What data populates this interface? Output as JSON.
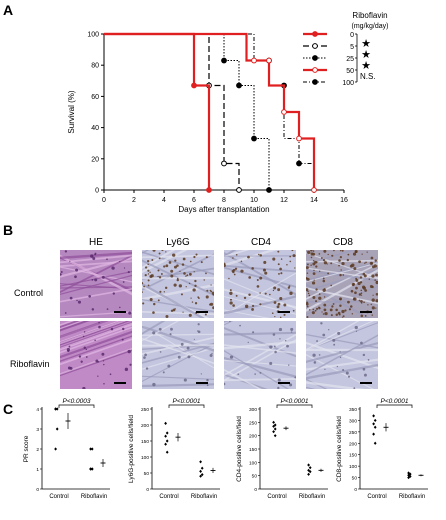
{
  "panels": {
    "a": "A",
    "b": "B",
    "c": "C"
  },
  "legend": {
    "title_line1": "Riboflavin",
    "title_line2": "(mg/kg/day)",
    "items": [
      {
        "dose": "0",
        "mark": "★"
      },
      {
        "dose": "5",
        "mark": "★"
      },
      {
        "dose": "25",
        "mark": "★"
      },
      {
        "dose": "50",
        "mark": ""
      },
      {
        "dose": "100",
        "mark": "N.S."
      }
    ]
  },
  "histology": {
    "columns": [
      "HE",
      "Ly6G",
      "CD4",
      "CD8"
    ],
    "rows": [
      "Control",
      "Riboflavin"
    ]
  },
  "colors": {
    "red": "#e02020",
    "he_purple": "#b07ab4",
    "ihc_bg": "#c4c6df",
    "ihc_brown": "#5a3a22"
  },
  "chart_data": [
    {
      "type": "line",
      "panel": "A",
      "xlabel": "Days after transplantation",
      "ylabel": "Survival (%)",
      "xlim": [
        0,
        16
      ],
      "ylim": [
        0,
        100
      ],
      "xticks": [
        "0",
        "2",
        "4",
        "6",
        "8",
        "10",
        "12",
        "14",
        "16"
      ],
      "yticks": [
        "0",
        "20",
        "40",
        "60",
        "80",
        "100"
      ],
      "series": [
        {
          "name": "0",
          "style": "solid-red-filled",
          "steps": [
            [
              0,
              100
            ],
            [
              6,
              100
            ],
            [
              6,
              67
            ],
            [
              7,
              67
            ],
            [
              7,
              0
            ]
          ],
          "points": [
            [
              6,
              67
            ],
            [
              7,
              0
            ]
          ]
        },
        {
          "name": "5",
          "style": "dashed-open",
          "steps": [
            [
              0,
              100
            ],
            [
              7,
              100
            ],
            [
              7,
              67
            ],
            [
              8,
              67
            ],
            [
              8,
              17
            ],
            [
              9,
              17
            ],
            [
              9,
              0
            ]
          ],
          "points": [
            [
              7,
              67
            ],
            [
              8,
              17
            ],
            [
              9,
              0
            ]
          ]
        },
        {
          "name": "25",
          "style": "dotted-filled",
          "steps": [
            [
              0,
              100
            ],
            [
              8,
              100
            ],
            [
              8,
              83
            ],
            [
              9,
              83
            ],
            [
              9,
              67
            ],
            [
              10,
              67
            ],
            [
              10,
              33
            ],
            [
              11,
              33
            ],
            [
              11,
              0
            ]
          ],
          "points": [
            [
              8,
              83
            ],
            [
              9,
              67
            ],
            [
              10,
              33
            ],
            [
              11,
              0
            ]
          ]
        },
        {
          "name": "50",
          "style": "solid-red-open",
          "steps": [
            [
              0,
              100
            ],
            [
              9.5,
              100
            ],
            [
              9.5,
              83
            ],
            [
              11,
              83
            ],
            [
              11,
              67
            ],
            [
              12,
              67
            ],
            [
              12,
              50
            ],
            [
              13,
              50
            ],
            [
              13,
              33
            ],
            [
              14,
              33
            ],
            [
              14,
              0
            ]
          ],
          "points": [
            [
              10,
              83
            ],
            [
              11,
              83
            ],
            [
              12,
              50
            ],
            [
              13,
              33
            ],
            [
              14,
              0
            ]
          ]
        },
        {
          "name": "100",
          "style": "dashdot-filled",
          "steps": [
            [
              0,
              100
            ],
            [
              10,
              100
            ],
            [
              10,
              83
            ],
            [
              11,
              83
            ],
            [
              11,
              67
            ],
            [
              12,
              67
            ],
            [
              12,
              33
            ],
            [
              13,
              33
            ],
            [
              13,
              17
            ],
            [
              14,
              17
            ],
            [
              14,
              0
            ]
          ],
          "points": [
            [
              11,
              83
            ],
            [
              12,
              67
            ],
            [
              13,
              17
            ]
          ]
        }
      ]
    },
    {
      "type": "scatter",
      "panel": "C1",
      "ylabel": "PR score",
      "categories": [
        "Control",
        "Riboflavin"
      ],
      "ylim": [
        0,
        4
      ],
      "yticks": [
        "0",
        "1",
        "2",
        "3",
        "4"
      ],
      "p_text": "P<0.0003",
      "groups": [
        {
          "category": "Control",
          "values": [
            4,
            4,
            4,
            3,
            2
          ],
          "mean": 3.4,
          "err": 0.4
        },
        {
          "category": "Riboflavin",
          "values": [
            2,
            2,
            1,
            1,
            1,
            1
          ],
          "mean": 1.3,
          "err": 0.2
        }
      ]
    },
    {
      "type": "scatter",
      "panel": "C2",
      "ylabel": "Ly6G-positive cells/field",
      "categories": [
        "Control",
        "Riboflavin"
      ],
      "ylim": [
        0,
        250
      ],
      "yticks": [
        "0",
        "50",
        "100",
        "150",
        "200",
        "250"
      ],
      "p_text": "P<0.0001",
      "groups": [
        {
          "category": "Control",
          "values": [
            205,
            175,
            165,
            150,
            140,
            115
          ],
          "mean": 162,
          "err": 13
        },
        {
          "category": "Riboflavin",
          "values": [
            85,
            65,
            55,
            45,
            40
          ],
          "mean": 58,
          "err": 8
        }
      ]
    },
    {
      "type": "scatter",
      "panel": "C3",
      "ylabel": "CD4-positive cells/field",
      "categories": [
        "Control",
        "Riboflavin"
      ],
      "ylim": [
        0,
        300
      ],
      "yticks": [
        "0",
        "50",
        "100",
        "150",
        "200",
        "250",
        "300"
      ],
      "p_text": "P<0.0001",
      "groups": [
        {
          "category": "Control",
          "values": [
            250,
            240,
            235,
            225,
            215,
            200
          ],
          "mean": 228,
          "err": 7
        },
        {
          "category": "Riboflavin",
          "values": [
            90,
            80,
            70,
            65,
            55
          ],
          "mean": 70,
          "err": 6
        }
      ]
    },
    {
      "type": "scatter",
      "panel": "C4",
      "ylabel": "CD8-positive cells/field",
      "categories": [
        "Control",
        "Riboflavin"
      ],
      "ylim": [
        0,
        350
      ],
      "yticks": [
        "0",
        "50",
        "100",
        "150",
        "200",
        "250",
        "300",
        "350"
      ],
      "p_text": "P<0.0001",
      "groups": [
        {
          "category": "Control",
          "values": [
            320,
            300,
            285,
            270,
            240,
            200
          ],
          "mean": 270,
          "err": 18
        },
        {
          "category": "Riboflavin",
          "values": [
            70,
            65,
            60,
            55,
            50
          ],
          "mean": 60,
          "err": 4
        }
      ]
    }
  ]
}
